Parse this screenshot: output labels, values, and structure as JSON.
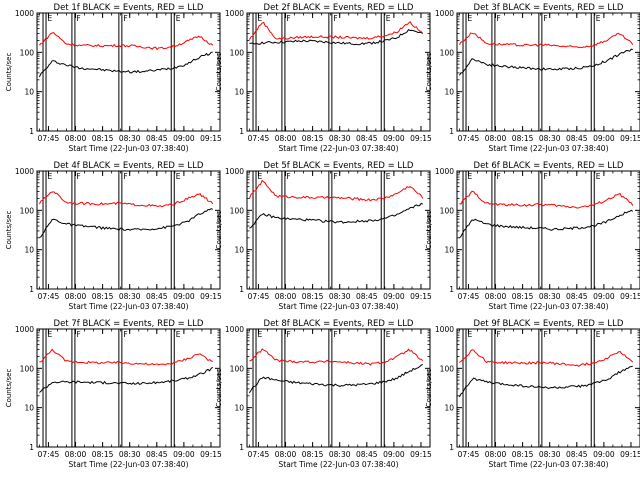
{
  "figure": {
    "subtitle_prefix": "Start Time (",
    "start_time": "22-Jun-03 07:38:40",
    "subtitle_suffix": ")",
    "colors": {
      "events": "#000000",
      "lld": "#ff0000",
      "axes": "#000000",
      "background": "#ffffff"
    }
  },
  "chart_data": [
    {
      "type": "line",
      "title": "Det 1f BLACK = Events, RED = LLD",
      "ylabel": "Counts/sec",
      "yscale": "log",
      "ylim": [
        1,
        1000
      ],
      "yticks": [
        "1",
        "10",
        "100",
        "1000"
      ],
      "xticks": [
        "07:45",
        "08:00",
        "08:15",
        "08:30",
        "08:45",
        "09:00",
        "09:15"
      ],
      "xlim": [
        "07:38:40",
        "09:20:00"
      ],
      "markers": [
        {
          "label": "E",
          "time": "07:42"
        },
        {
          "label": "F",
          "time": "07:58"
        },
        {
          "label": "F",
          "time": "08:24"
        },
        {
          "label": "E",
          "time": "08:53"
        }
      ],
      "series": [
        {
          "name": "Events",
          "color": "#000000",
          "values": [
            25,
            60,
            48,
            40,
            38,
            35,
            33,
            32,
            33,
            36,
            40,
            50,
            75,
            100
          ]
        },
        {
          "name": "LLD",
          "color": "#ff0000",
          "values": [
            150,
            330,
            165,
            150,
            148,
            147,
            150,
            145,
            135,
            125,
            140,
            185,
            260,
            150
          ]
        }
      ]
    },
    {
      "type": "line",
      "title": "Det 2f BLACK = Events, RED = LLD",
      "ylabel": "Counts/sec",
      "yscale": "log",
      "ylim": [
        1,
        1000
      ],
      "yticks": [
        "1",
        "10",
        "100",
        "1000"
      ],
      "xticks": [
        "07:45",
        "08:00",
        "08:15",
        "08:30",
        "08:45",
        "09:00",
        "09:15"
      ],
      "xlim": [
        "07:38:40",
        "09:20:00"
      ],
      "markers": [
        {
          "label": "E",
          "time": "07:42"
        },
        {
          "label": "F",
          "time": "07:58"
        },
        {
          "label": "F",
          "time": "08:24"
        },
        {
          "label": "E",
          "time": "08:53"
        }
      ],
      "series": [
        {
          "name": "Events",
          "color": "#000000",
          "values": [
            160,
            175,
            180,
            185,
            195,
            190,
            180,
            170,
            165,
            170,
            190,
            230,
            380,
            300
          ]
        },
        {
          "name": "LLD",
          "color": "#ff0000",
          "values": [
            210,
            600,
            220,
            230,
            245,
            250,
            245,
            240,
            230,
            230,
            260,
            320,
            600,
            300
          ]
        }
      ]
    },
    {
      "type": "line",
      "title": "Det 3f BLACK = Events, RED = LLD",
      "ylabel": "Counts/sec",
      "yscale": "log",
      "ylim": [
        1,
        1000
      ],
      "yticks": [
        "1",
        "10",
        "100",
        "1000"
      ],
      "xticks": [
        "07:45",
        "08:00",
        "08:15",
        "08:30",
        "08:45",
        "09:00",
        "09:15"
      ],
      "xlim": [
        "07:38:40",
        "09:20:00"
      ],
      "markers": [
        {
          "label": "E",
          "time": "07:42"
        },
        {
          "label": "F",
          "time": "07:58"
        },
        {
          "label": "F",
          "time": "08:24"
        },
        {
          "label": "E",
          "time": "08:53"
        }
      ],
      "series": [
        {
          "name": "Events",
          "color": "#000000",
          "values": [
            25,
            70,
            50,
            45,
            42,
            40,
            38,
            37,
            38,
            40,
            45,
            60,
            90,
            120
          ]
        },
        {
          "name": "LLD",
          "color": "#ff0000",
          "values": [
            160,
            330,
            170,
            160,
            155,
            150,
            155,
            150,
            140,
            135,
            150,
            200,
            300,
            160
          ]
        }
      ]
    },
    {
      "type": "line",
      "title": "Det 4f BLACK = Events, RED = LLD",
      "ylabel": "Counts/sec",
      "yscale": "log",
      "ylim": [
        1,
        1000
      ],
      "yticks": [
        "1",
        "10",
        "100",
        "1000"
      ],
      "xticks": [
        "07:45",
        "08:00",
        "08:15",
        "08:30",
        "08:45",
        "09:00",
        "09:15"
      ],
      "xlim": [
        "07:38:40",
        "09:20:00"
      ],
      "markers": [
        {
          "label": "E",
          "time": "07:42"
        },
        {
          "label": "F",
          "time": "07:58"
        },
        {
          "label": "F",
          "time": "08:24"
        },
        {
          "label": "E",
          "time": "08:53"
        }
      ],
      "series": [
        {
          "name": "Events",
          "color": "#000000",
          "values": [
            20,
            60,
            45,
            40,
            38,
            35,
            33,
            32,
            33,
            35,
            40,
            50,
            80,
            110
          ]
        },
        {
          "name": "LLD",
          "color": "#ff0000",
          "values": [
            150,
            320,
            160,
            150,
            148,
            145,
            150,
            140,
            135,
            125,
            140,
            190,
            260,
            150
          ]
        }
      ]
    },
    {
      "type": "line",
      "title": "Det 5f BLACK = Events, RED = LLD",
      "ylabel": "Counts/sec",
      "yscale": "log",
      "ylim": [
        1,
        1000
      ],
      "yticks": [
        "1",
        "10",
        "100",
        "1000"
      ],
      "xticks": [
        "07:45",
        "08:00",
        "08:15",
        "08:30",
        "08:45",
        "09:00",
        "09:15"
      ],
      "xlim": [
        "07:38:40",
        "09:20:00"
      ],
      "markers": [
        {
          "label": "E",
          "time": "07:42"
        },
        {
          "label": "F",
          "time": "07:58"
        },
        {
          "label": "F",
          "time": "08:24"
        },
        {
          "label": "E",
          "time": "08:53"
        }
      ],
      "series": [
        {
          "name": "Events",
          "color": "#000000",
          "values": [
            35,
            80,
            65,
            60,
            58,
            55,
            52,
            50,
            52,
            55,
            60,
            75,
            110,
            150
          ]
        },
        {
          "name": "LLD",
          "color": "#ff0000",
          "values": [
            210,
            560,
            230,
            220,
            215,
            210,
            210,
            205,
            195,
            185,
            200,
            260,
            420,
            210
          ]
        }
      ]
    },
    {
      "type": "line",
      "title": "Det 6f BLACK = Events, RED = LLD",
      "ylabel": "Counts/sec",
      "yscale": "log",
      "ylim": [
        1,
        1000
      ],
      "yticks": [
        "1",
        "10",
        "100",
        "1000"
      ],
      "xticks": [
        "07:45",
        "08:00",
        "08:15",
        "08:30",
        "08:45",
        "09:00",
        "09:15"
      ],
      "xlim": [
        "07:38:40",
        "09:20:00"
      ],
      "markers": [
        {
          "label": "E",
          "time": "07:42"
        },
        {
          "label": "F",
          "time": "07:58"
        },
        {
          "label": "F",
          "time": "08:24"
        },
        {
          "label": "E",
          "time": "08:53"
        }
      ],
      "series": [
        {
          "name": "Events",
          "color": "#000000",
          "values": [
            20,
            60,
            45,
            40,
            38,
            36,
            35,
            33,
            34,
            36,
            40,
            50,
            75,
            100
          ]
        },
        {
          "name": "LLD",
          "color": "#ff0000",
          "values": [
            140,
            300,
            150,
            140,
            138,
            135,
            140,
            135,
            125,
            120,
            135,
            180,
            260,
            140
          ]
        }
      ]
    },
    {
      "type": "line",
      "title": "Det 7f BLACK = Events, RED = LLD",
      "ylabel": "Counts/sec",
      "yscale": "log",
      "ylim": [
        1,
        1000
      ],
      "yticks": [
        "1",
        "10",
        "100",
        "1000"
      ],
      "xticks": [
        "07:45",
        "08:00",
        "08:15",
        "08:30",
        "08:45",
        "09:00",
        "09:15"
      ],
      "xlim": [
        "07:38:40",
        "09:20:00"
      ],
      "markers": [
        {
          "label": "E",
          "time": "07:42"
        },
        {
          "label": "F",
          "time": "07:58"
        },
        {
          "label": "F",
          "time": "08:24"
        },
        {
          "label": "E",
          "time": "08:53"
        }
      ],
      "series": [
        {
          "name": "Events",
          "color": "#000000",
          "values": [
            25,
            45,
            45,
            45,
            44,
            43,
            42,
            41,
            42,
            44,
            48,
            55,
            70,
            100
          ]
        },
        {
          "name": "LLD",
          "color": "#ff0000",
          "values": [
            140,
            300,
            150,
            145,
            140,
            138,
            140,
            135,
            128,
            122,
            135,
            170,
            240,
            140
          ]
        }
      ]
    },
    {
      "type": "line",
      "title": "Det 8f BLACK = Events, RED = LLD",
      "ylabel": "Counts/sec",
      "yscale": "log",
      "ylim": [
        1,
        1000
      ],
      "yticks": [
        "1",
        "10",
        "100",
        "1000"
      ],
      "xticks": [
        "07:45",
        "08:00",
        "08:15",
        "08:30",
        "08:45",
        "09:00",
        "09:15"
      ],
      "xlim": [
        "07:38:40",
        "09:20:00"
      ],
      "markers": [
        {
          "label": "E",
          "time": "07:42"
        },
        {
          "label": "F",
          "time": "07:58"
        },
        {
          "label": "F",
          "time": "08:24"
        },
        {
          "label": "E",
          "time": "08:53"
        }
      ],
      "series": [
        {
          "name": "Events",
          "color": "#000000",
          "values": [
            25,
            60,
            50,
            45,
            42,
            40,
            38,
            37,
            38,
            40,
            45,
            55,
            85,
            120
          ]
        },
        {
          "name": "LLD",
          "color": "#ff0000",
          "values": [
            150,
            310,
            160,
            150,
            148,
            145,
            150,
            145,
            135,
            128,
            140,
            190,
            300,
            150
          ]
        }
      ]
    },
    {
      "type": "line",
      "title": "Det 9f BLACK = Events, RED = LLD",
      "ylabel": "Counts/sec",
      "yscale": "log",
      "ylim": [
        1,
        1000
      ],
      "yticks": [
        "1",
        "10",
        "100",
        "1000"
      ],
      "xticks": [
        "07:45",
        "08:00",
        "08:15",
        "08:30",
        "08:45",
        "09:00",
        "09:15"
      ],
      "xlim": [
        "07:38:40",
        "09:20:00"
      ],
      "markers": [
        {
          "label": "E",
          "time": "07:42"
        },
        {
          "label": "F",
          "time": "07:58"
        },
        {
          "label": "F",
          "time": "08:24"
        },
        {
          "label": "E",
          "time": "08:53"
        }
      ],
      "series": [
        {
          "name": "Events",
          "color": "#000000",
          "values": [
            20,
            55,
            45,
            40,
            38,
            35,
            33,
            32,
            33,
            35,
            40,
            50,
            80,
            110
          ]
        },
        {
          "name": "LLD",
          "color": "#ff0000",
          "values": [
            140,
            300,
            150,
            140,
            138,
            135,
            140,
            135,
            125,
            120,
            135,
            180,
            270,
            140
          ]
        }
      ]
    }
  ]
}
